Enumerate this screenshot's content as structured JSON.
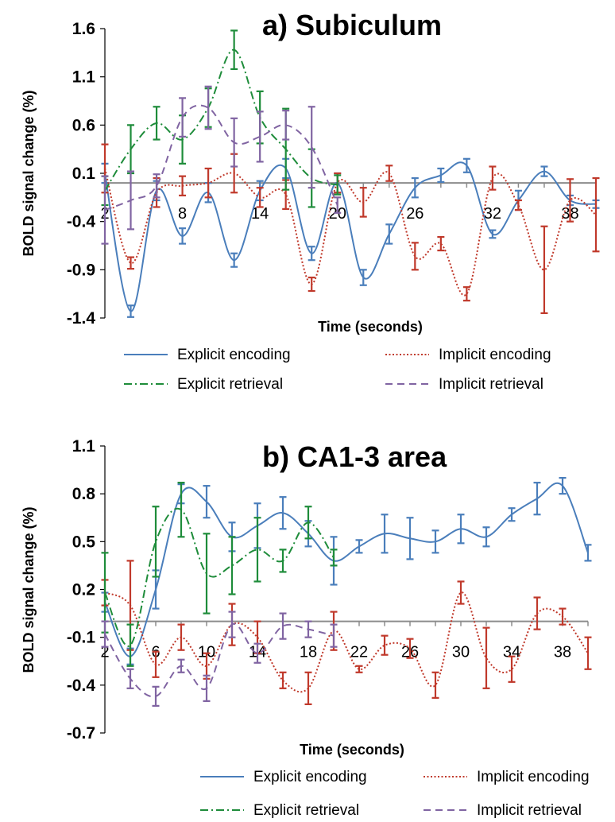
{
  "chart_data": [
    {
      "type": "line",
      "title": "a) Subiculum",
      "xlabel": "Time (seconds)",
      "ylabel": "BOLD signal change (%)",
      "ylim": [
        -1.4,
        1.6
      ],
      "xlim": [
        2,
        40
      ],
      "yticks": [
        "1.6",
        "1.1",
        "0.6",
        "0.1",
        "-0.4",
        "-0.9",
        "-1.4"
      ],
      "xticks": [
        "2",
        "8",
        "14",
        "20",
        "26",
        "32",
        "38"
      ],
      "legend_position": "bottom",
      "series": [
        {
          "name": "Explicit encoding",
          "color": "#4a7ebb",
          "style": "solid",
          "x": [
            2,
            4,
            6,
            8,
            10,
            12,
            14,
            16,
            18,
            20,
            22,
            24,
            26,
            28,
            30,
            32,
            34,
            36,
            38,
            40
          ],
          "y": [
            0.1,
            -1.33,
            -0.08,
            -0.55,
            -0.1,
            -0.8,
            -0.08,
            0.15,
            -0.73,
            0.0,
            -0.98,
            -0.53,
            -0.05,
            0.08,
            0.18,
            -0.53,
            -0.18,
            0.12,
            -0.18,
            -0.22
          ],
          "err": [
            0.1,
            0.06,
            0.1,
            0.08,
            0.1,
            0.07,
            0.1,
            0.1,
            0.07,
            0.1,
            0.08,
            0.1,
            0.1,
            0.07,
            0.07,
            0.04,
            0.1,
            0.05,
            0.05,
            0.04
          ]
        },
        {
          "name": "Implicit encoding",
          "color": "#c0392b",
          "style": "dotted",
          "x": [
            2,
            4,
            6,
            8,
            10,
            12,
            14,
            16,
            18,
            20,
            22,
            24,
            26,
            28,
            30,
            32,
            34,
            36,
            38,
            40
          ],
          "y": [
            0.15,
            -0.83,
            -0.1,
            -0.03,
            0.0,
            0.1,
            -0.15,
            -0.12,
            -1.05,
            0.0,
            -0.2,
            0.1,
            -0.76,
            -0.63,
            -1.15,
            0.05,
            -0.23,
            -0.9,
            -0.18,
            -0.33
          ],
          "err": [
            0.25,
            0.06,
            0.15,
            0.1,
            0.15,
            0.2,
            0.1,
            0.15,
            0.07,
            0.1,
            0.15,
            0.08,
            0.14,
            0.07,
            0.07,
            0.12,
            0.05,
            0.45,
            0.22,
            0.38
          ]
        },
        {
          "name": "Explicit retrieval",
          "color": "#1e8c3a",
          "style": "dashdot",
          "x": [
            2,
            4,
            6,
            8,
            10,
            12,
            14,
            16,
            18,
            20
          ],
          "y": [
            -0.08,
            0.35,
            0.62,
            0.45,
            0.78,
            1.38,
            0.68,
            0.35,
            0.05,
            -0.02
          ],
          "err": [
            0.15,
            0.25,
            0.17,
            0.25,
            0.2,
            0.2,
            0.27,
            0.42,
            0.3,
            0.1
          ]
        },
        {
          "name": "Implicit retrieval",
          "color": "#8064a2",
          "style": "dashed",
          "x": [
            2,
            4,
            6,
            8,
            10,
            12,
            14,
            16,
            18,
            20
          ],
          "y": [
            -0.28,
            -0.18,
            -0.03,
            0.68,
            0.78,
            0.42,
            0.48,
            0.6,
            0.37,
            -0.23
          ],
          "err": [
            0.35,
            0.3,
            0.12,
            0.2,
            0.22,
            0.25,
            0.26,
            0.15,
            0.42,
            0.08
          ]
        }
      ]
    },
    {
      "type": "line",
      "title": "b) CA1-3 area",
      "xlabel": "Time (seconds)",
      "ylabel": "BOLD signal change (%)",
      "ylim": [
        -0.7,
        1.1
      ],
      "xlim": [
        2,
        40
      ],
      "yticks": [
        "1.1",
        "0.8",
        "0.5",
        "0.2",
        "-0.1",
        "-0.4",
        "-0.7"
      ],
      "xticks": [
        "2",
        "6",
        "10",
        "14",
        "18",
        "22",
        "26",
        "30",
        "34",
        "38"
      ],
      "legend_position": "bottom",
      "series": [
        {
          "name": "Explicit encoding",
          "color": "#4a7ebb",
          "style": "solid",
          "x": [
            2,
            4,
            6,
            8,
            10,
            12,
            14,
            16,
            18,
            20,
            22,
            24,
            26,
            28,
            30,
            32,
            34,
            36,
            38,
            40
          ],
          "y": [
            0.12,
            -0.22,
            0.2,
            0.8,
            0.75,
            0.53,
            0.6,
            0.68,
            0.55,
            0.38,
            0.47,
            0.55,
            0.52,
            0.5,
            0.58,
            0.53,
            0.67,
            0.77,
            0.85,
            0.43
          ],
          "err": [
            0.06,
            0.05,
            0.12,
            0.06,
            0.1,
            0.09,
            0.14,
            0.1,
            0.08,
            0.15,
            0.04,
            0.12,
            0.13,
            0.07,
            0.09,
            0.06,
            0.04,
            0.1,
            0.05,
            0.05
          ]
        },
        {
          "name": "Implicit encoding",
          "color": "#c0392b",
          "style": "dotted",
          "x": [
            2,
            4,
            6,
            8,
            10,
            12,
            14,
            16,
            18,
            20,
            22,
            24,
            26,
            28,
            30,
            32,
            34,
            36,
            38,
            40
          ],
          "y": [
            0.18,
            0.1,
            -0.27,
            -0.1,
            -0.28,
            -0.02,
            -0.1,
            -0.37,
            -0.42,
            -0.06,
            -0.3,
            -0.15,
            -0.17,
            -0.4,
            0.18,
            -0.23,
            -0.3,
            0.05,
            0.03,
            -0.2
          ],
          "err": [
            0.08,
            0.28,
            0.08,
            0.08,
            0.08,
            0.13,
            0.1,
            0.05,
            0.1,
            0.12,
            0.02,
            0.06,
            0.06,
            0.08,
            0.07,
            0.19,
            0.08,
            0.1,
            0.05,
            0.1
          ]
        },
        {
          "name": "Explicit retrieval",
          "color": "#1e8c3a",
          "style": "dashdot",
          "x": [
            2,
            4,
            6,
            8,
            10,
            12,
            14,
            16,
            18,
            20
          ],
          "y": [
            0.18,
            -0.15,
            0.5,
            0.7,
            0.3,
            0.35,
            0.45,
            0.38,
            0.62,
            0.4
          ],
          "err": [
            0.25,
            0.13,
            0.22,
            0.17,
            0.25,
            0.18,
            0.2,
            0.07,
            0.1,
            0.05
          ]
        },
        {
          "name": "Implicit retrieval",
          "color": "#8064a2",
          "style": "dashed",
          "x": [
            2,
            4,
            6,
            8,
            10,
            12,
            14,
            16,
            18,
            20
          ],
          "y": [
            -0.08,
            -0.36,
            -0.47,
            -0.28,
            -0.42,
            -0.02,
            -0.2,
            -0.03,
            -0.05,
            -0.09
          ],
          "err": [
            0.08,
            0.06,
            0.06,
            0.04,
            0.08,
            0.08,
            0.06,
            0.08,
            0.05,
            0.07
          ]
        }
      ]
    }
  ]
}
